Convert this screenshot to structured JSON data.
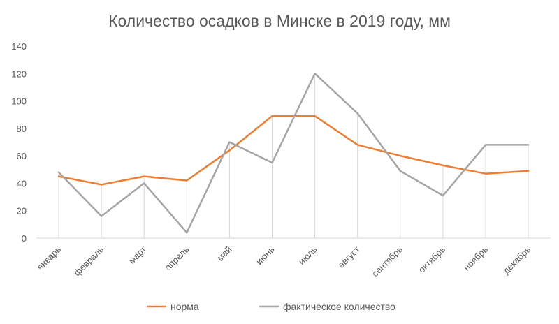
{
  "chart_data": {
    "type": "line",
    "title": "Количество  осадков в Минске в 2019 году, мм",
    "xlabel": "",
    "ylabel": "",
    "ylim": [
      0,
      140
    ],
    "yticks": [
      0,
      20,
      40,
      60,
      80,
      100,
      120,
      140
    ],
    "categories": [
      "январь",
      "февраль",
      "март",
      "апрель",
      "май",
      "июнь",
      "июль",
      "август",
      "сентябрь",
      "октябрь",
      "ноябрь",
      "декабрь"
    ],
    "series": [
      {
        "name": "норма",
        "color": "#ED7D31",
        "values": [
          45,
          39,
          45,
          42,
          64,
          89,
          89,
          68,
          60,
          53,
          47,
          49
        ]
      },
      {
        "name": "фактическое  количество",
        "color": "#A5A5A5",
        "values": [
          48,
          16,
          40,
          4,
          70,
          55,
          120,
          91,
          49,
          31,
          68,
          68
        ]
      }
    ],
    "grid": false,
    "category_drop_lines": true,
    "legend_position": "bottom"
  }
}
